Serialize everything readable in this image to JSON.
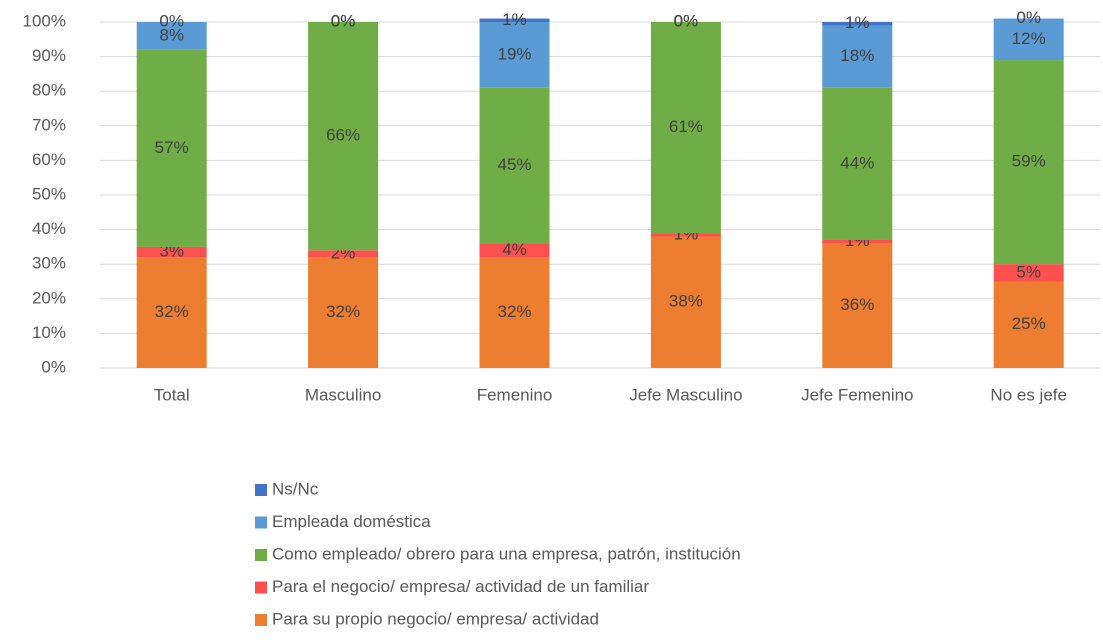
{
  "chart_data": {
    "type": "stacked_bar",
    "categories": [
      "Total",
      "Masculino",
      "Femenino",
      "Jefe Masculino",
      "Jefe Femenino",
      "No es jefe"
    ],
    "series": [
      {
        "name": "Para su propio negocio/ empresa/ actividad",
        "color": "#ED7D31",
        "values": [
          32,
          32,
          32,
          38,
          36,
          25
        ],
        "value_labels": [
          "32%",
          "32%",
          "32%",
          "38%",
          "36%",
          "25%"
        ]
      },
      {
        "name": "Para el negocio/ empresa/ actividad de un familiar",
        "color": "#FF5050",
        "values": [
          3,
          2,
          4,
          1,
          1,
          5
        ],
        "value_labels": [
          "3%",
          "2%",
          "4%",
          "1%",
          "1%",
          "5%"
        ]
      },
      {
        "name": "Como empleado/ obrero para una empresa, patrón, institución",
        "color": "#70AD47",
        "values": [
          57,
          66,
          45,
          61,
          44,
          59
        ],
        "value_labels": [
          "57%",
          "66%",
          "45%",
          "61%",
          "44%",
          "59%"
        ]
      },
      {
        "name": "Empleada doméstica",
        "color": "#5B9BD5",
        "values": [
          8,
          0,
          19,
          0,
          18,
          12
        ],
        "value_labels": [
          "8%",
          "0%",
          "19%",
          "0%",
          "18%",
          "12%"
        ]
      },
      {
        "name": "Ns/Nc",
        "color": "#4472C4",
        "values": [
          0,
          0,
          1,
          0,
          1,
          0
        ],
        "value_labels": [
          "0%",
          "0%",
          "1%",
          "0%",
          "1%",
          "0%"
        ]
      }
    ],
    "ylim": [
      0,
      100
    ],
    "yticks": [
      {
        "value": 0,
        "label": "0%"
      },
      {
        "value": 10,
        "label": "10%"
      },
      {
        "value": 20,
        "label": "20%"
      },
      {
        "value": 30,
        "label": "30%"
      },
      {
        "value": 40,
        "label": "40%"
      },
      {
        "value": 50,
        "label": "50%"
      },
      {
        "value": 60,
        "label": "60%"
      },
      {
        "value": 70,
        "label": "70%"
      },
      {
        "value": 80,
        "label": "80%"
      },
      {
        "value": 90,
        "label": "90%"
      },
      {
        "value": 100,
        "label": "100%"
      }
    ],
    "grid": true,
    "legend": "bottom"
  }
}
